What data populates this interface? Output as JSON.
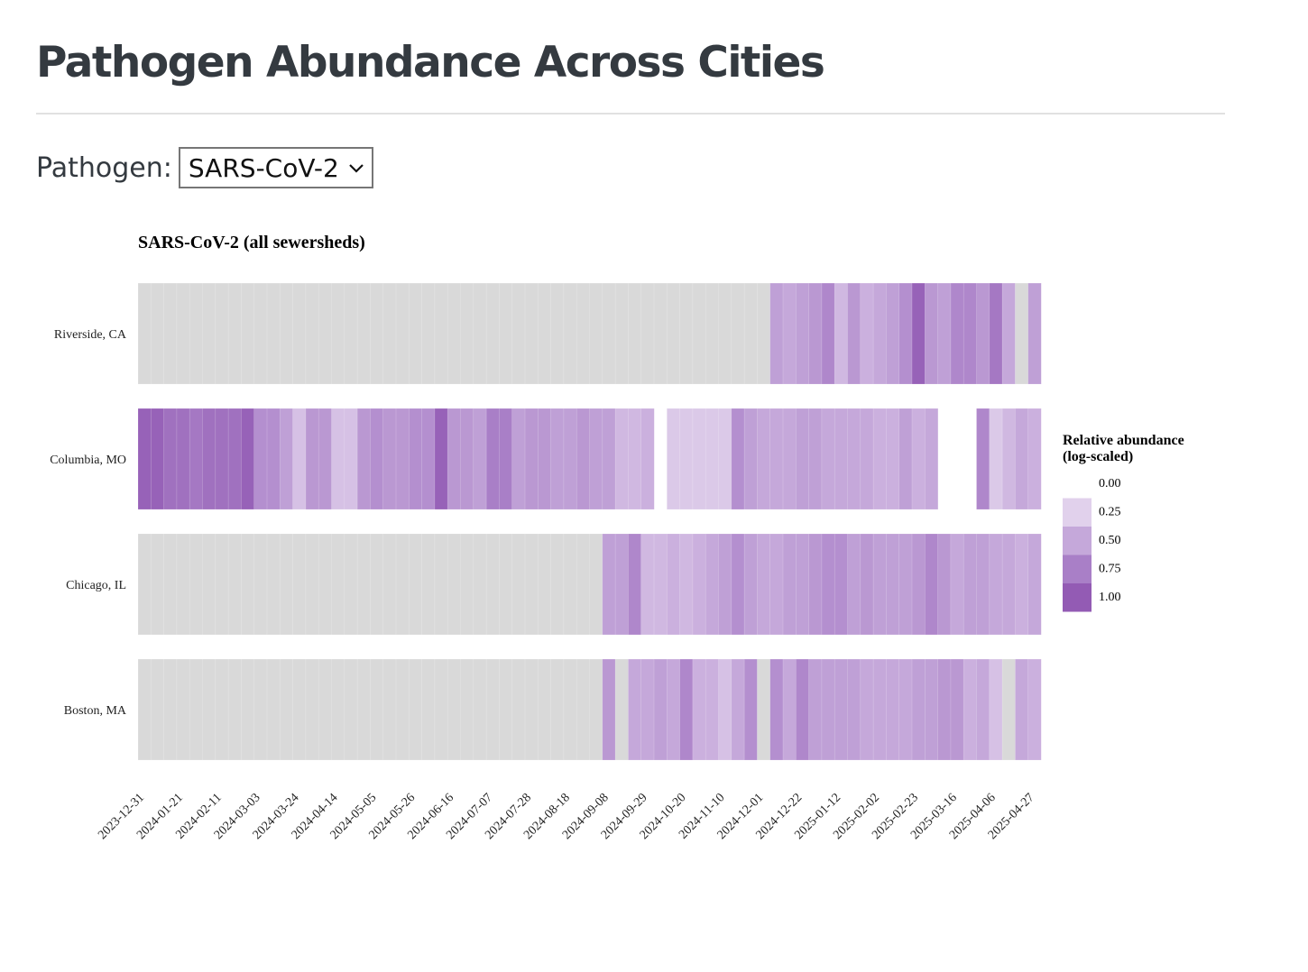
{
  "page": {
    "title": "Pathogen Abundance Across Cities"
  },
  "controls": {
    "pathogen_label": "Pathogen:",
    "pathogen_selected": "SARS-CoV-2"
  },
  "colors": {
    "no_data": "#d9d9d9",
    "scale": [
      "#f2eaf6",
      "#e1d1ec",
      "#c5a8da",
      "#a97fc7",
      "#935bb4"
    ]
  },
  "chart_data": {
    "type": "heatmap",
    "title": "SARS-CoV-2 (all sewersheds)",
    "rows": [
      "Riverside, CA",
      "Columbia, MO",
      "Chicago, IL",
      "Boston, MA"
    ],
    "x_start": "2023-12-31",
    "x_step_days": 7,
    "x_tick_labels": [
      "2023-12-31",
      "2024-01-21",
      "2024-02-11",
      "2024-03-03",
      "2024-03-24",
      "2024-04-14",
      "2024-05-05",
      "2024-05-26",
      "2024-06-16",
      "2024-07-07",
      "2024-07-28",
      "2024-08-18",
      "2024-09-08",
      "2024-09-29",
      "2024-10-20",
      "2024-11-10",
      "2024-12-01",
      "2024-12-22",
      "2025-01-12",
      "2025-02-02",
      "2025-02-23",
      "2025-03-16",
      "2025-04-06",
      "2025-04-27"
    ],
    "values": [
      [
        "nd",
        "nd",
        "nd",
        "nd",
        "nd",
        "nd",
        "nd",
        "nd",
        "nd",
        "nd",
        "nd",
        "nd",
        "nd",
        "nd",
        "nd",
        "nd",
        "nd",
        "nd",
        "nd",
        "nd",
        "nd",
        "nd",
        "nd",
        "nd",
        "nd",
        "nd",
        "nd",
        "nd",
        "nd",
        "nd",
        "nd",
        "nd",
        "nd",
        "nd",
        "nd",
        "nd",
        "nd",
        "nd",
        "nd",
        "nd",
        "nd",
        "nd",
        "nd",
        "nd",
        "nd",
        "nd",
        "nd",
        "nd",
        "nd",
        0.55,
        0.5,
        0.55,
        0.6,
        0.7,
        0.4,
        0.6,
        0.45,
        0.5,
        0.55,
        0.65,
        0.95,
        0.6,
        0.55,
        0.7,
        0.7,
        0.6,
        0.8,
        0.5,
        "nd",
        0.55
      ],
      [
        0.95,
        0.95,
        0.85,
        0.85,
        0.8,
        0.85,
        0.85,
        0.85,
        0.95,
        0.65,
        0.65,
        0.55,
        0.35,
        0.6,
        0.6,
        0.35,
        0.35,
        0.6,
        0.65,
        0.6,
        0.6,
        0.65,
        0.65,
        0.95,
        0.6,
        0.6,
        0.55,
        0.75,
        0.75,
        0.55,
        0.6,
        0.6,
        0.55,
        0.55,
        0.6,
        0.55,
        0.55,
        0.4,
        0.4,
        0.45,
        null,
        0.3,
        0.3,
        0.3,
        0.3,
        0.3,
        0.65,
        0.55,
        0.5,
        0.5,
        0.5,
        0.55,
        0.55,
        0.5,
        0.5,
        0.5,
        0.5,
        0.45,
        0.45,
        0.55,
        0.45,
        0.5,
        null,
        null,
        null,
        0.7,
        0.3,
        0.4,
        0.5,
        0.45
      ],
      [
        "nd",
        "nd",
        "nd",
        "nd",
        "nd",
        "nd",
        "nd",
        "nd",
        "nd",
        "nd",
        "nd",
        "nd",
        "nd",
        "nd",
        "nd",
        "nd",
        "nd",
        "nd",
        "nd",
        "nd",
        "nd",
        "nd",
        "nd",
        "nd",
        "nd",
        "nd",
        "nd",
        "nd",
        "nd",
        "nd",
        "nd",
        "nd",
        "nd",
        "nd",
        "nd",
        "nd",
        0.55,
        0.55,
        0.7,
        0.4,
        0.4,
        0.45,
        0.4,
        0.45,
        0.5,
        0.55,
        0.65,
        0.55,
        0.5,
        0.5,
        0.55,
        0.55,
        0.6,
        0.65,
        0.65,
        0.55,
        0.6,
        0.55,
        0.55,
        0.55,
        0.6,
        0.7,
        0.6,
        0.5,
        0.55,
        0.55,
        0.5,
        0.5,
        0.45,
        0.5
      ],
      [
        "nd",
        "nd",
        "nd",
        "nd",
        "nd",
        "nd",
        "nd",
        "nd",
        "nd",
        "nd",
        "nd",
        "nd",
        "nd",
        "nd",
        "nd",
        "nd",
        "nd",
        "nd",
        "nd",
        "nd",
        "nd",
        "nd",
        "nd",
        "nd",
        "nd",
        "nd",
        "nd",
        "nd",
        "nd",
        "nd",
        "nd",
        "nd",
        "nd",
        "nd",
        "nd",
        "nd",
        0.6,
        "nd",
        0.5,
        0.5,
        0.55,
        0.5,
        0.7,
        0.45,
        0.45,
        0.35,
        0.5,
        0.65,
        "nd",
        0.65,
        0.5,
        0.7,
        0.55,
        0.55,
        0.55,
        0.55,
        0.5,
        0.5,
        0.5,
        0.5,
        0.55,
        0.55,
        0.6,
        0.6,
        0.45,
        0.5,
        0.35,
        "nd",
        0.5,
        0.45
      ]
    ],
    "legend": {
      "title_lines": [
        "Relative abundance",
        "(log-scaled)"
      ],
      "ticks": [
        "0.00",
        "0.25",
        "0.50",
        "0.75",
        "1.00"
      ]
    }
  }
}
